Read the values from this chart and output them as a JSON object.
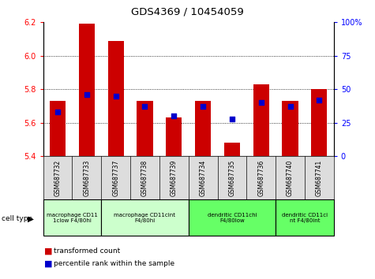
{
  "title": "GDS4369 / 10454059",
  "samples": [
    "GSM687732",
    "GSM687733",
    "GSM687737",
    "GSM687738",
    "GSM687739",
    "GSM687734",
    "GSM687735",
    "GSM687736",
    "GSM687740",
    "GSM687741"
  ],
  "transformed_counts": [
    5.73,
    6.19,
    6.09,
    5.73,
    5.63,
    5.73,
    5.48,
    5.83,
    5.73,
    5.8
  ],
  "percentile_ranks": [
    33,
    46,
    45,
    37,
    30,
    37,
    28,
    40,
    37,
    42
  ],
  "ylim_left": [
    5.4,
    6.2
  ],
  "yticks_left": [
    5.4,
    5.6,
    5.8,
    6.0,
    6.2
  ],
  "yticks_right": [
    0,
    25,
    50,
    75,
    100
  ],
  "bar_color": "#cc0000",
  "dot_color": "#0000cc",
  "bg_color": "#ffffff",
  "cell_type_groups": [
    {
      "label": "macrophage CD11\n1clow F4/80hi",
      "start": 0,
      "end": 2,
      "color": "#ccffcc"
    },
    {
      "label": "macrophage CD11cint\nF4/80hi",
      "start": 2,
      "end": 5,
      "color": "#ccffcc"
    },
    {
      "label": "dendritic CD11chi\nF4/80low",
      "start": 5,
      "end": 8,
      "color": "#66ff66"
    },
    {
      "label": "dendritic CD11ci\nnt F4/80int",
      "start": 8,
      "end": 10,
      "color": "#66ff66"
    }
  ],
  "legend_labels": [
    "transformed count",
    "percentile rank within the sample"
  ],
  "legend_colors": [
    "#cc0000",
    "#0000cc"
  ]
}
